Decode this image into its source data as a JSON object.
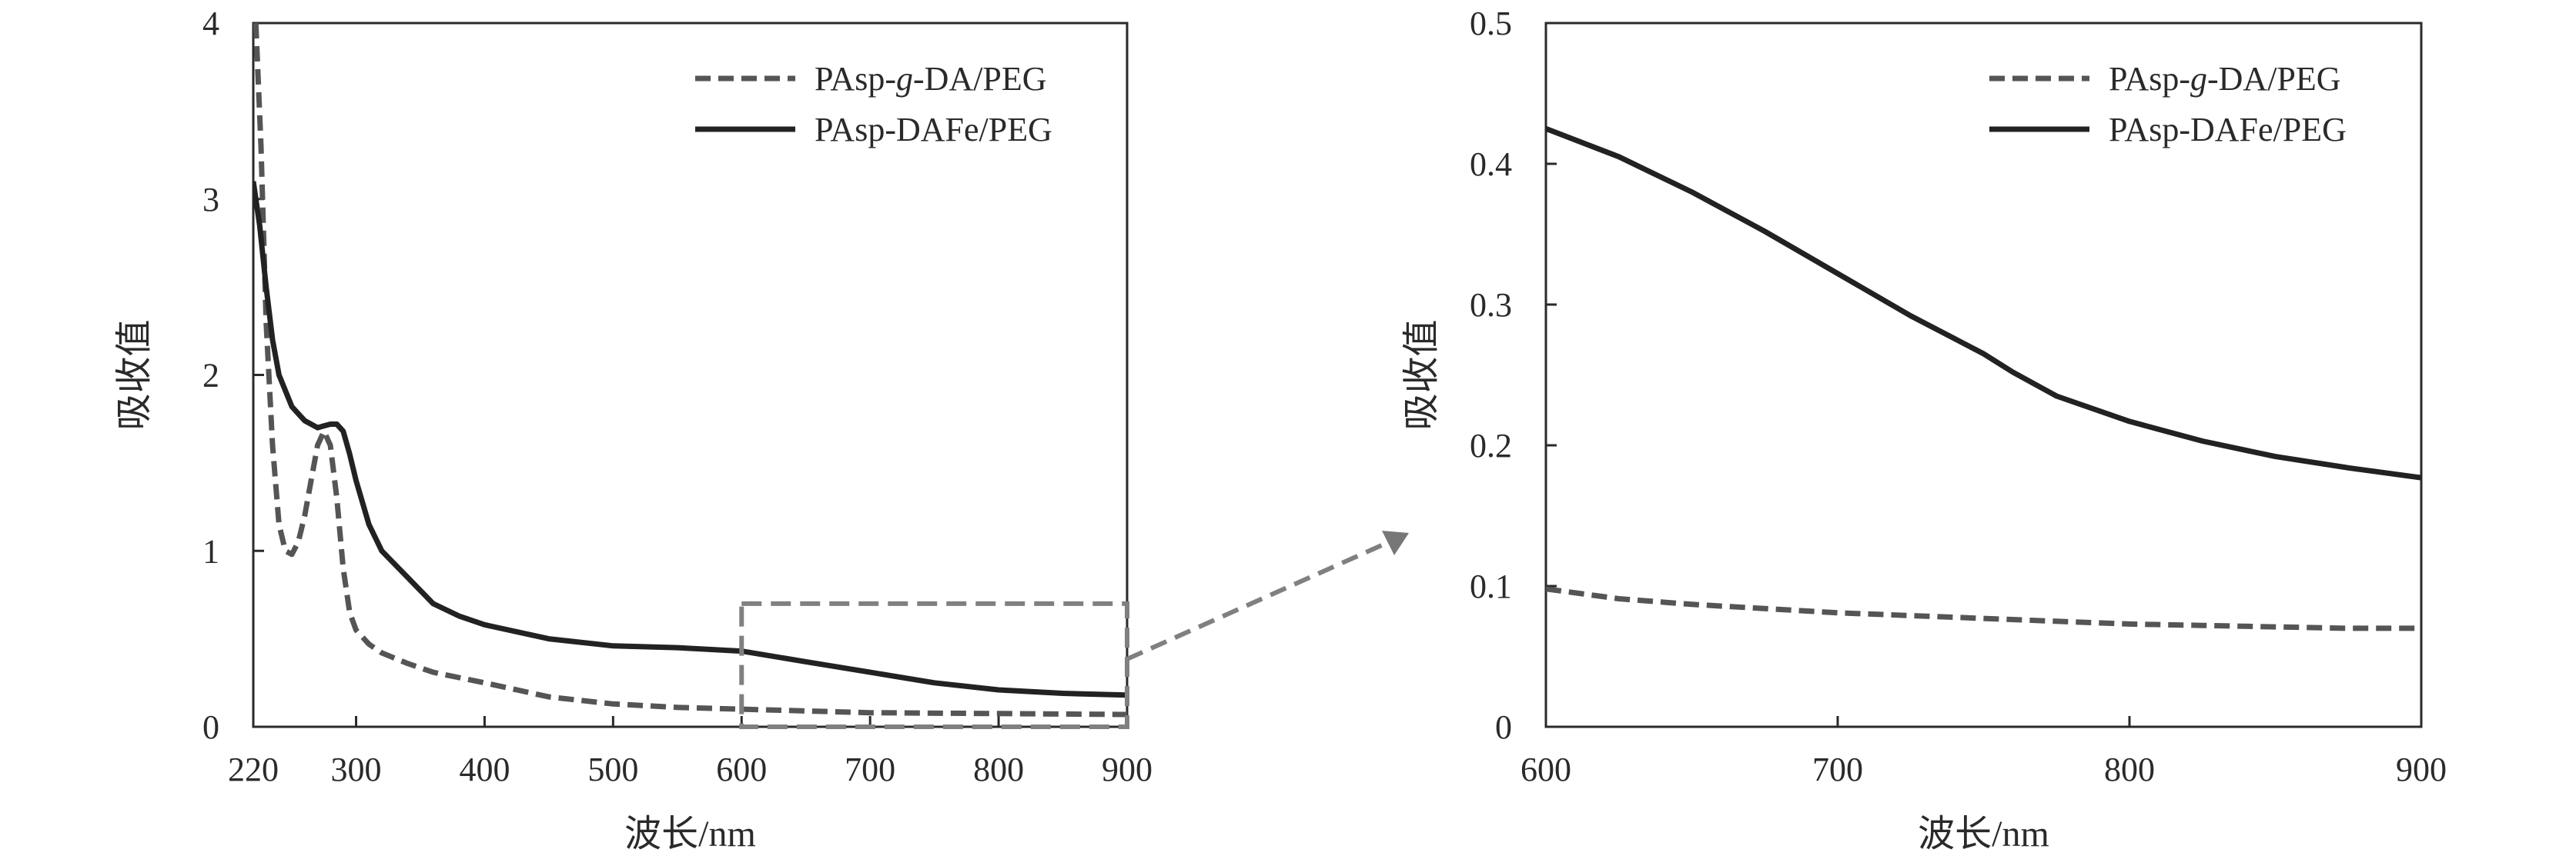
{
  "chart_data": [
    {
      "type": "line",
      "xlabel": "波长/nm",
      "ylabel": "吸收值",
      "xlim": [
        220,
        900
      ],
      "ylim": [
        0,
        4
      ],
      "x_ticks": [
        "220",
        "300",
        "400",
        "500",
        "600",
        "700",
        "800",
        "900"
      ],
      "y_ticks": [
        "0",
        "1",
        "2",
        "3",
        "4"
      ],
      "grid": false,
      "legend_position": "top-right",
      "zoom_region": {
        "x": [
          600,
          900
        ],
        "y": [
          0,
          0.7
        ]
      },
      "series": [
        {
          "name": "PAsp-g-DA/PEG",
          "legend_prefix": "PAsp-",
          "legend_italic": "g",
          "legend_suffix": "-DA/PEG",
          "style": "dashed",
          "color": "#555555",
          "x": [
            222,
            226,
            230,
            235,
            240,
            245,
            250,
            255,
            260,
            265,
            270,
            275,
            280,
            285,
            290,
            295,
            300,
            310,
            320,
            340,
            360,
            380,
            400,
            450,
            500,
            550,
            600,
            700,
            800,
            900
          ],
          "y": [
            4.0,
            3.3,
            2.3,
            1.6,
            1.15,
            1.0,
            0.98,
            1.05,
            1.2,
            1.4,
            1.6,
            1.68,
            1.6,
            1.3,
            0.9,
            0.65,
            0.55,
            0.47,
            0.42,
            0.36,
            0.31,
            0.28,
            0.25,
            0.17,
            0.13,
            0.11,
            0.1,
            0.08,
            0.075,
            0.07
          ]
        },
        {
          "name": "PAsp-DAFe/PEG",
          "legend_prefix": "PAsp-DAFe/PEG",
          "legend_italic": "",
          "legend_suffix": "",
          "style": "solid",
          "color": "#222222",
          "x": [
            220,
            225,
            230,
            235,
            240,
            250,
            260,
            270,
            275,
            280,
            285,
            290,
            295,
            300,
            310,
            320,
            340,
            360,
            380,
            400,
            450,
            500,
            550,
            600,
            650,
            700,
            750,
            800,
            850,
            900
          ],
          "y": [
            3.1,
            2.85,
            2.5,
            2.2,
            2.0,
            1.82,
            1.74,
            1.7,
            1.71,
            1.72,
            1.72,
            1.68,
            1.55,
            1.4,
            1.15,
            1.0,
            0.85,
            0.7,
            0.63,
            0.58,
            0.5,
            0.46,
            0.45,
            0.43,
            0.37,
            0.31,
            0.25,
            0.21,
            0.19,
            0.18
          ]
        }
      ]
    },
    {
      "type": "line",
      "xlabel": "波长/nm",
      "ylabel": "吸收值",
      "xlim": [
        600,
        900
      ],
      "ylim": [
        0,
        0.5
      ],
      "x_ticks": [
        "600",
        "700",
        "800",
        "900"
      ],
      "y_ticks": [
        "0",
        "0.1",
        "0.2",
        "0.3",
        "0.4",
        "0.5"
      ],
      "grid": false,
      "legend_position": "top-right",
      "series": [
        {
          "name": "PAsp-g-DA/PEG",
          "legend_prefix": "PAsp-",
          "legend_italic": "g",
          "legend_suffix": "-DA/PEG",
          "style": "dashed",
          "color": "#555555",
          "x": [
            600,
            625,
            650,
            675,
            700,
            725,
            750,
            775,
            800,
            825,
            850,
            875,
            900
          ],
          "y": [
            0.098,
            0.091,
            0.087,
            0.084,
            0.081,
            0.079,
            0.077,
            0.075,
            0.073,
            0.072,
            0.071,
            0.07,
            0.07
          ]
        },
        {
          "name": "PAsp-DAFe/PEG",
          "legend_prefix": "PAsp-DAFe/PEG",
          "legend_italic": "",
          "legend_suffix": "",
          "style": "solid",
          "color": "#222222",
          "x": [
            600,
            625,
            650,
            675,
            700,
            725,
            750,
            760,
            775,
            800,
            825,
            850,
            875,
            900
          ],
          "y": [
            0.425,
            0.405,
            0.38,
            0.352,
            0.322,
            0.292,
            0.265,
            0.252,
            0.235,
            0.217,
            0.203,
            0.192,
            0.184,
            0.177
          ]
        }
      ]
    }
  ]
}
